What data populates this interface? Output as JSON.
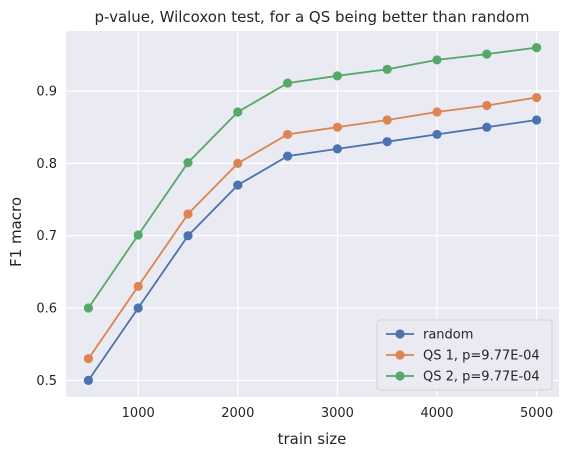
{
  "chart_data": {
    "type": "line",
    "title": "p-value, Wilcoxon test, for a QS being better than random",
    "xlabel": "train size",
    "ylabel": "F1 macro",
    "x": [
      500,
      1000,
      1500,
      2000,
      2500,
      3000,
      3500,
      4000,
      4500,
      5000
    ],
    "xticks": [
      1000,
      2000,
      3000,
      4000,
      5000
    ],
    "yticks": [
      0.5,
      0.6,
      0.7,
      0.8,
      0.9
    ],
    "xlim": [
      275,
      5225
    ],
    "ylim": [
      0.477,
      0.983
    ],
    "grid": true,
    "legend_position": "lower-right",
    "series": [
      {
        "name": "random",
        "color": "#4c72b0",
        "values": [
          0.5,
          0.6,
          0.7,
          0.77,
          0.81,
          0.82,
          0.83,
          0.84,
          0.85,
          0.86
        ]
      },
      {
        "name": "QS 1, p=9.77E-04",
        "color": "#dd8452",
        "values": [
          0.53,
          0.63,
          0.73,
          0.8,
          0.84,
          0.85,
          0.86,
          0.871,
          0.88,
          0.891
        ]
      },
      {
        "name": "QS 2, p=9.77E-04",
        "color": "#55a868",
        "values": [
          0.6,
          0.701,
          0.801,
          0.871,
          0.911,
          0.921,
          0.93,
          0.943,
          0.951,
          0.96
        ]
      }
    ]
  }
}
